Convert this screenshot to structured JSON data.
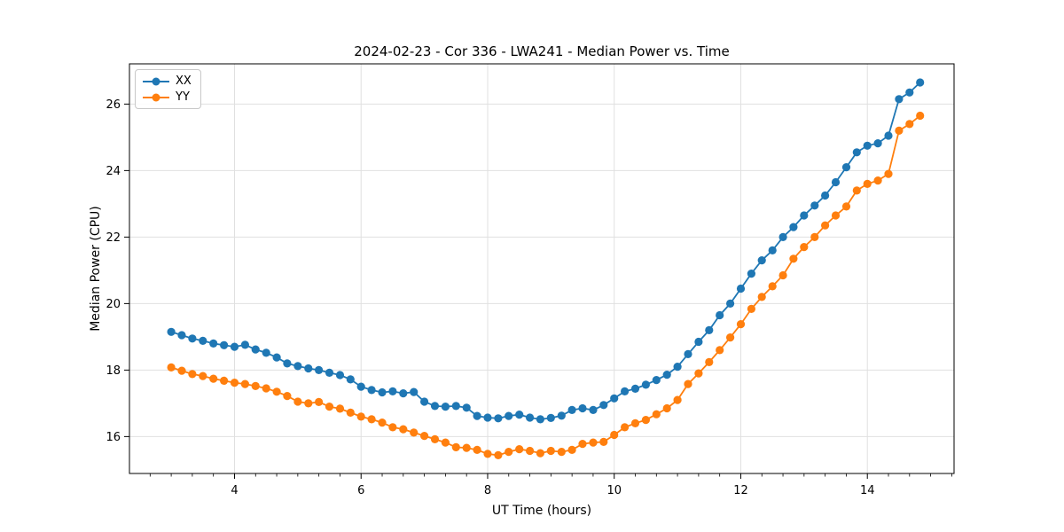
{
  "chart_data": {
    "type": "line",
    "title": "2024-02-23 - Cor 336 - LWA241 - Median Power vs. Time",
    "xlabel": "UT Time (hours)",
    "ylabel": "Median Power (CPU)",
    "xlim": [
      2.34,
      15.37
    ],
    "ylim": [
      14.89,
      27.21
    ],
    "xticks": [
      4,
      6,
      8,
      10,
      12,
      14
    ],
    "yticks": [
      16,
      18,
      20,
      22,
      24,
      26
    ],
    "x_minor_tick_step": 0.3333,
    "grid": true,
    "legend_position": "upper-left",
    "styles": {
      "grid_color": "#e0e0e0",
      "spine_color": "#000000",
      "tick_color": "#000000",
      "background": "#ffffff",
      "marker_radius": 4.6,
      "line_width": 1.8,
      "tick_font_size": 13
    },
    "x": [
      3.0,
      3.167,
      3.333,
      3.5,
      3.667,
      3.833,
      4.0,
      4.167,
      4.333,
      4.5,
      4.667,
      4.833,
      5.0,
      5.167,
      5.333,
      5.5,
      5.667,
      5.833,
      6.0,
      6.167,
      6.333,
      6.5,
      6.667,
      6.833,
      7.0,
      7.167,
      7.333,
      7.5,
      7.667,
      7.833,
      8.0,
      8.167,
      8.333,
      8.5,
      8.667,
      8.833,
      9.0,
      9.167,
      9.333,
      9.5,
      9.667,
      9.833,
      10.0,
      10.167,
      10.333,
      10.5,
      10.667,
      10.833,
      11.0,
      11.167,
      11.333,
      11.5,
      11.667,
      11.833,
      12.0,
      12.167,
      12.333,
      12.5,
      12.667,
      12.833,
      13.0,
      13.167,
      13.333,
      13.5,
      13.667,
      13.833,
      14.0,
      14.167,
      14.333,
      14.5,
      14.667,
      14.833
    ],
    "series": [
      {
        "name": "XX",
        "color": "#1f77b4",
        "values": [
          19.15,
          19.05,
          18.95,
          18.88,
          18.8,
          18.75,
          18.7,
          18.76,
          18.62,
          18.52,
          18.38,
          18.2,
          18.12,
          18.05,
          18.0,
          17.92,
          17.85,
          17.72,
          17.5,
          17.4,
          17.33,
          17.36,
          17.3,
          17.34,
          17.05,
          16.92,
          16.9,
          16.92,
          16.87,
          16.62,
          16.57,
          16.55,
          16.62,
          16.66,
          16.57,
          16.52,
          16.56,
          16.63,
          16.8,
          16.85,
          16.8,
          16.95,
          17.15,
          17.36,
          17.44,
          17.56,
          17.7,
          17.86,
          18.1,
          18.48,
          18.85,
          19.2,
          19.65,
          20.0,
          20.45,
          20.9,
          21.3,
          21.6,
          22.0,
          22.3,
          22.65,
          22.95,
          23.25,
          23.65,
          24.1,
          24.55,
          24.75,
          24.82,
          25.05,
          26.15,
          26.35,
          26.65
        ]
      },
      {
        "name": "YY",
        "color": "#ff7f0e",
        "values": [
          18.08,
          17.98,
          17.88,
          17.82,
          17.74,
          17.68,
          17.62,
          17.58,
          17.52,
          17.45,
          17.35,
          17.22,
          17.05,
          17.0,
          17.04,
          16.9,
          16.84,
          16.72,
          16.6,
          16.52,
          16.42,
          16.28,
          16.22,
          16.12,
          16.02,
          15.92,
          15.82,
          15.68,
          15.66,
          15.6,
          15.48,
          15.44,
          15.54,
          15.62,
          15.57,
          15.5,
          15.57,
          15.54,
          15.6,
          15.78,
          15.82,
          15.84,
          16.05,
          16.28,
          16.4,
          16.5,
          16.67,
          16.85,
          17.1,
          17.58,
          17.9,
          18.24,
          18.6,
          18.98,
          19.38,
          19.84,
          20.2,
          20.52,
          20.85,
          21.35,
          21.7,
          22.0,
          22.35,
          22.65,
          22.92,
          23.4,
          23.6,
          23.7,
          23.9,
          25.2,
          25.4,
          25.65
        ]
      }
    ]
  }
}
